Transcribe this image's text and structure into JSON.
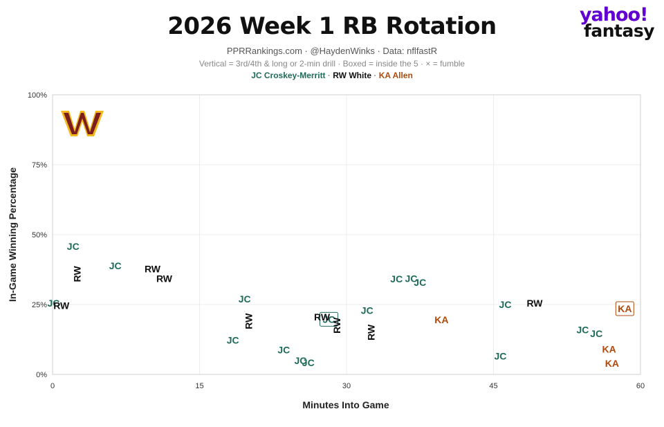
{
  "header": {
    "title": "2026 Week 1 RB Rotation",
    "subtitle": "PPRRankings.com · @HaydenWinks · Data: nflfastR",
    "note": "Vertical = 3rd/4th & long or 2-min drill · Boxed = inside the 5 · × = fumble",
    "legend": [
      {
        "label": "JC Croskey-Merritt",
        "color": "#1e6b58"
      },
      {
        "label": "RW White",
        "color": "#111111"
      },
      {
        "label": "KA Allen",
        "color": "#b04a0c"
      }
    ],
    "legend_sep": " · "
  },
  "logo": {
    "line1": "yahoo!",
    "line2": "fantasy",
    "team_logo": "washington-commanders-w-logo"
  },
  "chart_data": {
    "type": "scatter",
    "title": "2026 Week 1 RB Rotation",
    "xlabel": "Minutes Into Game",
    "ylabel": "In-Game Winning Percentage",
    "xlim": [
      0,
      60
    ],
    "ylim": [
      0,
      100
    ],
    "xticks": [
      0,
      15,
      30,
      45,
      60
    ],
    "yticks": [
      0,
      25,
      50,
      75,
      100
    ],
    "ytick_labels": [
      "0%",
      "25%",
      "50%",
      "75%",
      "100%"
    ],
    "grid": true,
    "series": [
      {
        "name": "JC Croskey-Merritt",
        "color": "#1e6b58",
        "points": [
          {
            "x": 0.1,
            "y": 25.5,
            "label": "JC",
            "vertical": false,
            "boxed": false
          },
          {
            "x": 2.1,
            "y": 45.8,
            "label": "JC",
            "vertical": false,
            "boxed": false
          },
          {
            "x": 6.4,
            "y": 38.9,
            "label": "JC",
            "vertical": false,
            "boxed": false
          },
          {
            "x": 19.6,
            "y": 27.0,
            "label": "JC",
            "vertical": false,
            "boxed": false
          },
          {
            "x": 18.4,
            "y": 12.2,
            "label": "JC",
            "vertical": false,
            "boxed": false
          },
          {
            "x": 23.6,
            "y": 8.8,
            "label": "JC",
            "vertical": false,
            "boxed": false
          },
          {
            "x": 25.3,
            "y": 4.9,
            "label": "JC",
            "vertical": false,
            "boxed": false
          },
          {
            "x": 26.1,
            "y": 4.2,
            "label": "JC",
            "vertical": false,
            "boxed": false
          },
          {
            "x": 28.2,
            "y": 19.7,
            "label": "JC",
            "vertical": false,
            "boxed": true
          },
          {
            "x": 32.1,
            "y": 22.9,
            "label": "JC",
            "vertical": false,
            "boxed": false
          },
          {
            "x": 35.1,
            "y": 34.1,
            "label": "JC",
            "vertical": false,
            "boxed": false
          },
          {
            "x": 36.6,
            "y": 34.3,
            "label": "JC",
            "vertical": false,
            "boxed": false
          },
          {
            "x": 37.5,
            "y": 32.9,
            "label": "JC",
            "vertical": false,
            "boxed": false
          },
          {
            "x": 46.2,
            "y": 25.0,
            "label": "JC",
            "vertical": false,
            "boxed": false
          },
          {
            "x": 45.7,
            "y": 6.6,
            "label": "JC",
            "vertical": false,
            "boxed": false
          },
          {
            "x": 54.1,
            "y": 16.0,
            "label": "JC",
            "vertical": false,
            "boxed": false
          },
          {
            "x": 55.5,
            "y": 14.6,
            "label": "JC",
            "vertical": false,
            "boxed": false
          }
        ]
      },
      {
        "name": "RW White",
        "color": "#111111",
        "points": [
          {
            "x": 0.9,
            "y": 24.6,
            "label": "RW",
            "vertical": false,
            "boxed": false
          },
          {
            "x": 2.5,
            "y": 35.9,
            "label": "RW",
            "vertical": true,
            "boxed": false
          },
          {
            "x": 10.2,
            "y": 37.8,
            "label": "RW",
            "vertical": false,
            "boxed": false
          },
          {
            "x": 11.4,
            "y": 34.3,
            "label": "RW",
            "vertical": false,
            "boxed": false
          },
          {
            "x": 20.0,
            "y": 19.0,
            "label": "RW",
            "vertical": true,
            "boxed": false
          },
          {
            "x": 27.5,
            "y": 20.5,
            "label": "RW",
            "vertical": false,
            "boxed": false
          },
          {
            "x": 29.0,
            "y": 17.5,
            "label": "RW",
            "vertical": true,
            "boxed": false
          },
          {
            "x": 32.5,
            "y": 15.0,
            "label": "RW",
            "vertical": true,
            "boxed": false
          },
          {
            "x": 49.2,
            "y": 25.5,
            "label": "RW",
            "vertical": false,
            "boxed": false
          }
        ]
      },
      {
        "name": "KA Allen",
        "color": "#b04a0c",
        "points": [
          {
            "x": 39.7,
            "y": 19.5,
            "label": "KA",
            "vertical": false,
            "boxed": false
          },
          {
            "x": 58.4,
            "y": 23.5,
            "label": "KA",
            "vertical": false,
            "boxed": true
          },
          {
            "x": 56.8,
            "y": 9.0,
            "label": "KA",
            "vertical": false,
            "boxed": false
          },
          {
            "x": 57.1,
            "y": 4.0,
            "label": "KA",
            "vertical": false,
            "boxed": false
          }
        ]
      }
    ]
  }
}
